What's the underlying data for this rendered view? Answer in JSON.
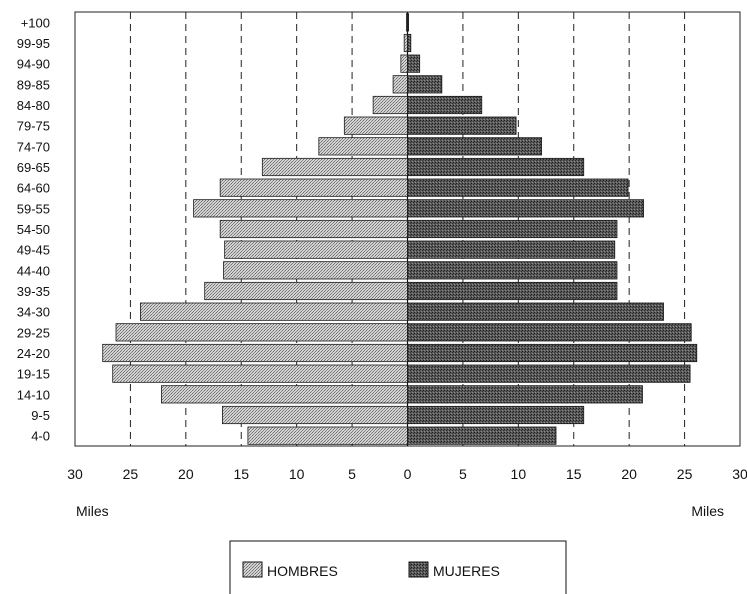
{
  "chart_data": {
    "type": "bar",
    "orientation": "horizontal",
    "layout": "population-pyramid",
    "categories": [
      "+100",
      "99-95",
      "94-90",
      "89-85",
      "84-80",
      "79-75",
      "74-70",
      "69-65",
      "64-60",
      "59-55",
      "54-50",
      "49-45",
      "44-40",
      "39-35",
      "34-30",
      "29-25",
      "24-20",
      "19-15",
      "14-10",
      "9-5",
      "4-0"
    ],
    "series": [
      {
        "name": "HOMBRES",
        "side": "left",
        "values": [
          0.1,
          0.3,
          0.6,
          1.3,
          3.1,
          5.7,
          8.0,
          13.1,
          16.9,
          19.3,
          16.9,
          16.5,
          16.6,
          18.3,
          24.1,
          26.3,
          27.5,
          26.6,
          22.2,
          16.7,
          14.4
        ]
      },
      {
        "name": "MUJERES",
        "side": "right",
        "values": [
          0.1,
          0.3,
          1.1,
          3.1,
          6.7,
          9.8,
          12.1,
          15.9,
          19.9,
          21.3,
          18.9,
          18.7,
          18.9,
          18.9,
          23.1,
          25.6,
          26.1,
          25.5,
          21.2,
          15.9,
          13.4
        ]
      }
    ],
    "xticks": [
      "30",
      "25",
      "20",
      "15",
      "10",
      "5",
      "0",
      "5",
      "10",
      "15",
      "20",
      "25",
      "30"
    ],
    "xlim": [
      -30,
      30
    ],
    "xlabel_left": "Miles",
    "xlabel_right": "Miles",
    "vertical_gridlines": [
      -25,
      -20,
      -15,
      -10,
      -5,
      5,
      10,
      15,
      20,
      25
    ],
    "legend": {
      "placement": "bottom-center",
      "entries": [
        "HOMBRES",
        "MUJERES"
      ]
    },
    "colors": {
      "hombres": "#b8b8b8",
      "mujeres": "#5a5a5a",
      "grid": "#222222"
    }
  }
}
